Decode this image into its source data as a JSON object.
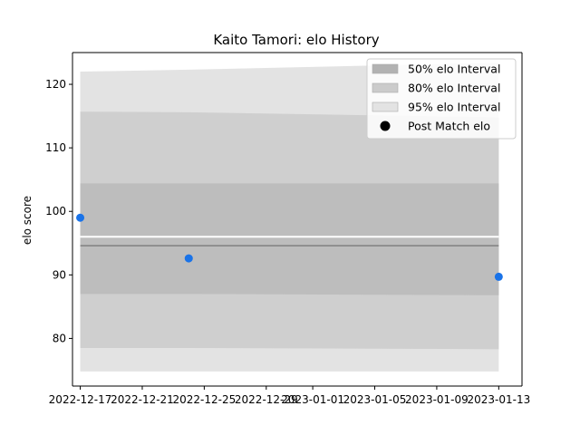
{
  "chart_data": {
    "type": "area",
    "title": "Kaito Tamori: elo History",
    "xlabel": "",
    "ylabel": "elo score",
    "x_dates": [
      "2022-12-17",
      "2022-12-24",
      "2023-01-13"
    ],
    "xlim": [
      "2022-12-16 12:00",
      "2023-01-14 12:00"
    ],
    "ylim": [
      72.5,
      125
    ],
    "x_ticks": [
      "2022-12-17",
      "2022-12-21",
      "2022-12-25",
      "2022-12-29",
      "2023-01-01",
      "2023-01-05",
      "2023-01-09",
      "2023-01-13"
    ],
    "y_ticks": [
      80,
      90,
      100,
      110,
      120
    ],
    "grid": false,
    "legend_position": "top-right",
    "series": [
      {
        "name": "95% elo Interval",
        "lower": [
          74.8,
          74.8,
          74.8
        ],
        "upper": [
          122.0,
          122.3,
          123.4
        ],
        "color": "#e3e3e3"
      },
      {
        "name": "80% elo Interval",
        "lower": [
          78.5,
          78.5,
          78.3
        ],
        "upper": [
          115.7,
          115.6,
          114.8
        ],
        "color": "#cfcfcf"
      },
      {
        "name": "50% elo Interval",
        "lower": [
          87.0,
          87.0,
          86.8
        ],
        "upper": [
          104.4,
          104.4,
          104.4
        ],
        "color": "#bdbdbd"
      },
      {
        "name": "Post Match elo",
        "values": [
          99.0,
          92.6,
          89.7
        ],
        "color": "#1a73e8"
      }
    ],
    "mean_line": {
      "values": [
        94.6,
        94.6,
        94.6
      ],
      "color": "#808080"
    },
    "white_line": {
      "values": [
        96.0,
        96.0,
        96.0
      ],
      "color": "#ffffff"
    },
    "legend_marker_color": "#000000"
  }
}
